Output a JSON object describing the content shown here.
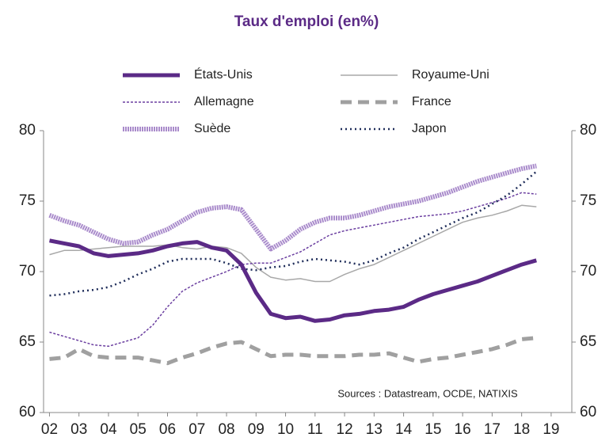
{
  "chart_data": {
    "type": "line",
    "title": "Taux d'emploi (en%)",
    "annotation": "Sources : Datastream, OCDE, NATIXIS",
    "x": [
      2002,
      2002.5,
      2003,
      2003.5,
      2004,
      2004.5,
      2005,
      2005.5,
      2006,
      2006.5,
      2007,
      2007.5,
      2008,
      2008.5,
      2009,
      2009.5,
      2010,
      2010.5,
      2011,
      2011.5,
      2012,
      2012.5,
      2013,
      2013.5,
      2014,
      2014.5,
      2015,
      2015.5,
      2016,
      2016.5,
      2017,
      2017.5,
      2018,
      2018.5
    ],
    "series": [
      {
        "name": "États-Unis",
        "color": "#5b2a86",
        "line_style": "thick",
        "values": [
          72.2,
          72.0,
          71.8,
          71.3,
          71.1,
          71.2,
          71.3,
          71.5,
          71.8,
          72.0,
          72.1,
          71.7,
          71.5,
          70.5,
          68.5,
          67.0,
          66.7,
          66.8,
          66.5,
          66.6,
          66.9,
          67.0,
          67.2,
          67.3,
          67.5,
          68.0,
          68.4,
          68.7,
          69.0,
          69.3,
          69.7,
          70.1,
          70.5,
          70.8
        ]
      },
      {
        "name": "Royaume-Uni",
        "color": "#a8a8a8",
        "line_style": "thin",
        "values": [
          71.2,
          71.5,
          71.5,
          71.6,
          71.7,
          71.8,
          71.8,
          71.8,
          71.9,
          71.7,
          71.6,
          71.8,
          71.7,
          71.3,
          70.3,
          69.6,
          69.4,
          69.5,
          69.3,
          69.3,
          69.8,
          70.2,
          70.5,
          71.0,
          71.5,
          72.0,
          72.5,
          73.0,
          73.5,
          73.8,
          74.0,
          74.3,
          74.7,
          74.6
        ]
      },
      {
        "name": "Allemagne",
        "color": "#6b3fa0",
        "line_style": "dashed",
        "values": [
          65.7,
          65.4,
          65.1,
          64.8,
          64.7,
          65.0,
          65.3,
          66.2,
          67.5,
          68.6,
          69.2,
          69.6,
          70.0,
          70.5,
          70.6,
          70.6,
          71.0,
          71.4,
          72.0,
          72.6,
          72.9,
          73.1,
          73.3,
          73.5,
          73.7,
          73.9,
          74.0,
          74.1,
          74.3,
          74.6,
          74.9,
          75.2,
          75.6,
          75.5
        ]
      },
      {
        "name": "France",
        "color": "#a0a0a0",
        "line_style": "thick-dashed",
        "values": [
          63.8,
          63.9,
          64.5,
          64.0,
          63.9,
          63.9,
          63.9,
          63.7,
          63.5,
          63.9,
          64.2,
          64.6,
          64.9,
          65.0,
          64.5,
          64.0,
          64.1,
          64.1,
          64.0,
          64.0,
          64.0,
          64.1,
          64.1,
          64.2,
          63.9,
          63.6,
          63.8,
          63.9,
          64.1,
          64.3,
          64.5,
          64.8,
          65.2,
          65.3
        ]
      },
      {
        "name": "Suède",
        "color": "#a98bcb",
        "line_style": "hatched",
        "values": [
          74.0,
          73.6,
          73.3,
          72.8,
          72.3,
          72.0,
          72.1,
          72.6,
          73.0,
          73.6,
          74.2,
          74.5,
          74.6,
          74.4,
          73.0,
          71.6,
          72.2,
          73.0,
          73.5,
          73.8,
          73.8,
          74.0,
          74.3,
          74.6,
          74.8,
          75.0,
          75.3,
          75.6,
          76.0,
          76.4,
          76.7,
          77.0,
          77.3,
          77.5
        ]
      },
      {
        "name": "Japon",
        "color": "#1f2d5a",
        "line_style": "dotted",
        "values": [
          68.3,
          68.4,
          68.6,
          68.7,
          68.9,
          69.3,
          69.8,
          70.2,
          70.7,
          70.9,
          70.9,
          70.9,
          70.6,
          70.2,
          70.1,
          70.3,
          70.4,
          70.7,
          70.9,
          70.8,
          70.7,
          70.5,
          70.8,
          71.3,
          71.7,
          72.3,
          72.8,
          73.3,
          73.8,
          74.2,
          74.8,
          75.4,
          76.2,
          77.1
        ]
      }
    ],
    "xlim": [
      2001.8,
      2019.7
    ],
    "xticks": [
      {
        "value": 2002,
        "label": "02"
      },
      {
        "value": 2003,
        "label": "03"
      },
      {
        "value": 2004,
        "label": "04"
      },
      {
        "value": 2005,
        "label": "05"
      },
      {
        "value": 2006,
        "label": "06"
      },
      {
        "value": 2007,
        "label": "07"
      },
      {
        "value": 2008,
        "label": "08"
      },
      {
        "value": 2009,
        "label": "09"
      },
      {
        "value": 2010,
        "label": "10"
      },
      {
        "value": 2011,
        "label": "11"
      },
      {
        "value": 2012,
        "label": "12"
      },
      {
        "value": 2013,
        "label": "13"
      },
      {
        "value": 2014,
        "label": "14"
      },
      {
        "value": 2015,
        "label": "15"
      },
      {
        "value": 2016,
        "label": "16"
      },
      {
        "value": 2017,
        "label": "17"
      },
      {
        "value": 2018,
        "label": "18"
      },
      {
        "value": 2019,
        "label": "19"
      }
    ],
    "ylim": [
      60,
      80
    ],
    "yticks": [
      60,
      65,
      70,
      75,
      80
    ],
    "y2lim": [
      60,
      80
    ],
    "y2ticks": [
      60,
      65,
      70,
      75,
      80
    ],
    "title_color": "#5b2a86",
    "grid": false
  }
}
